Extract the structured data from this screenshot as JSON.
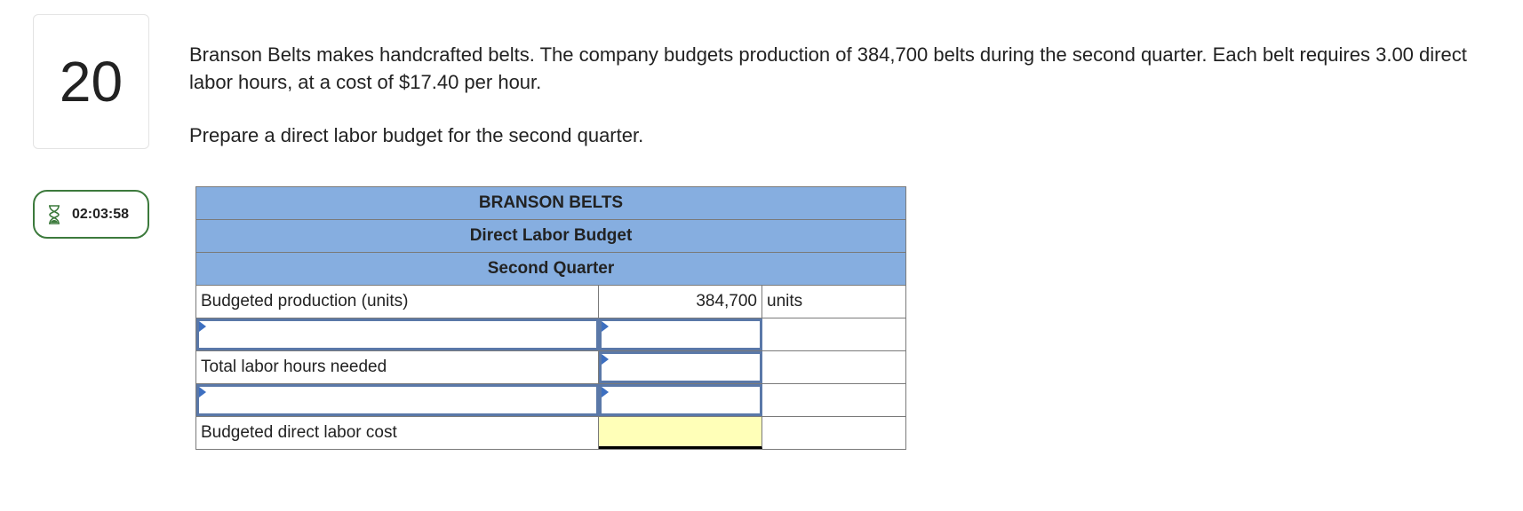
{
  "question": {
    "number": "20",
    "timer": "02:03:58",
    "prompt": [
      "Branson Belts makes handcrafted belts. The company budgets production of 384,700 belts during the second quarter. Each belt requires 3.00 direct labor hours, at a cost of $17.40 per hour.",
      "Prepare a direct labor budget for the second quarter."
    ]
  },
  "table": {
    "header": [
      "BRANSON BELTS",
      "Direct Labor Budget",
      "Second Quarter"
    ],
    "rows": [
      {
        "label": "Budgeted production (units)",
        "value": "384,700",
        "unit": "units"
      },
      {},
      {
        "label": "Total labor hours needed"
      },
      {},
      {
        "label": "Budgeted direct labor cost"
      }
    ]
  }
}
